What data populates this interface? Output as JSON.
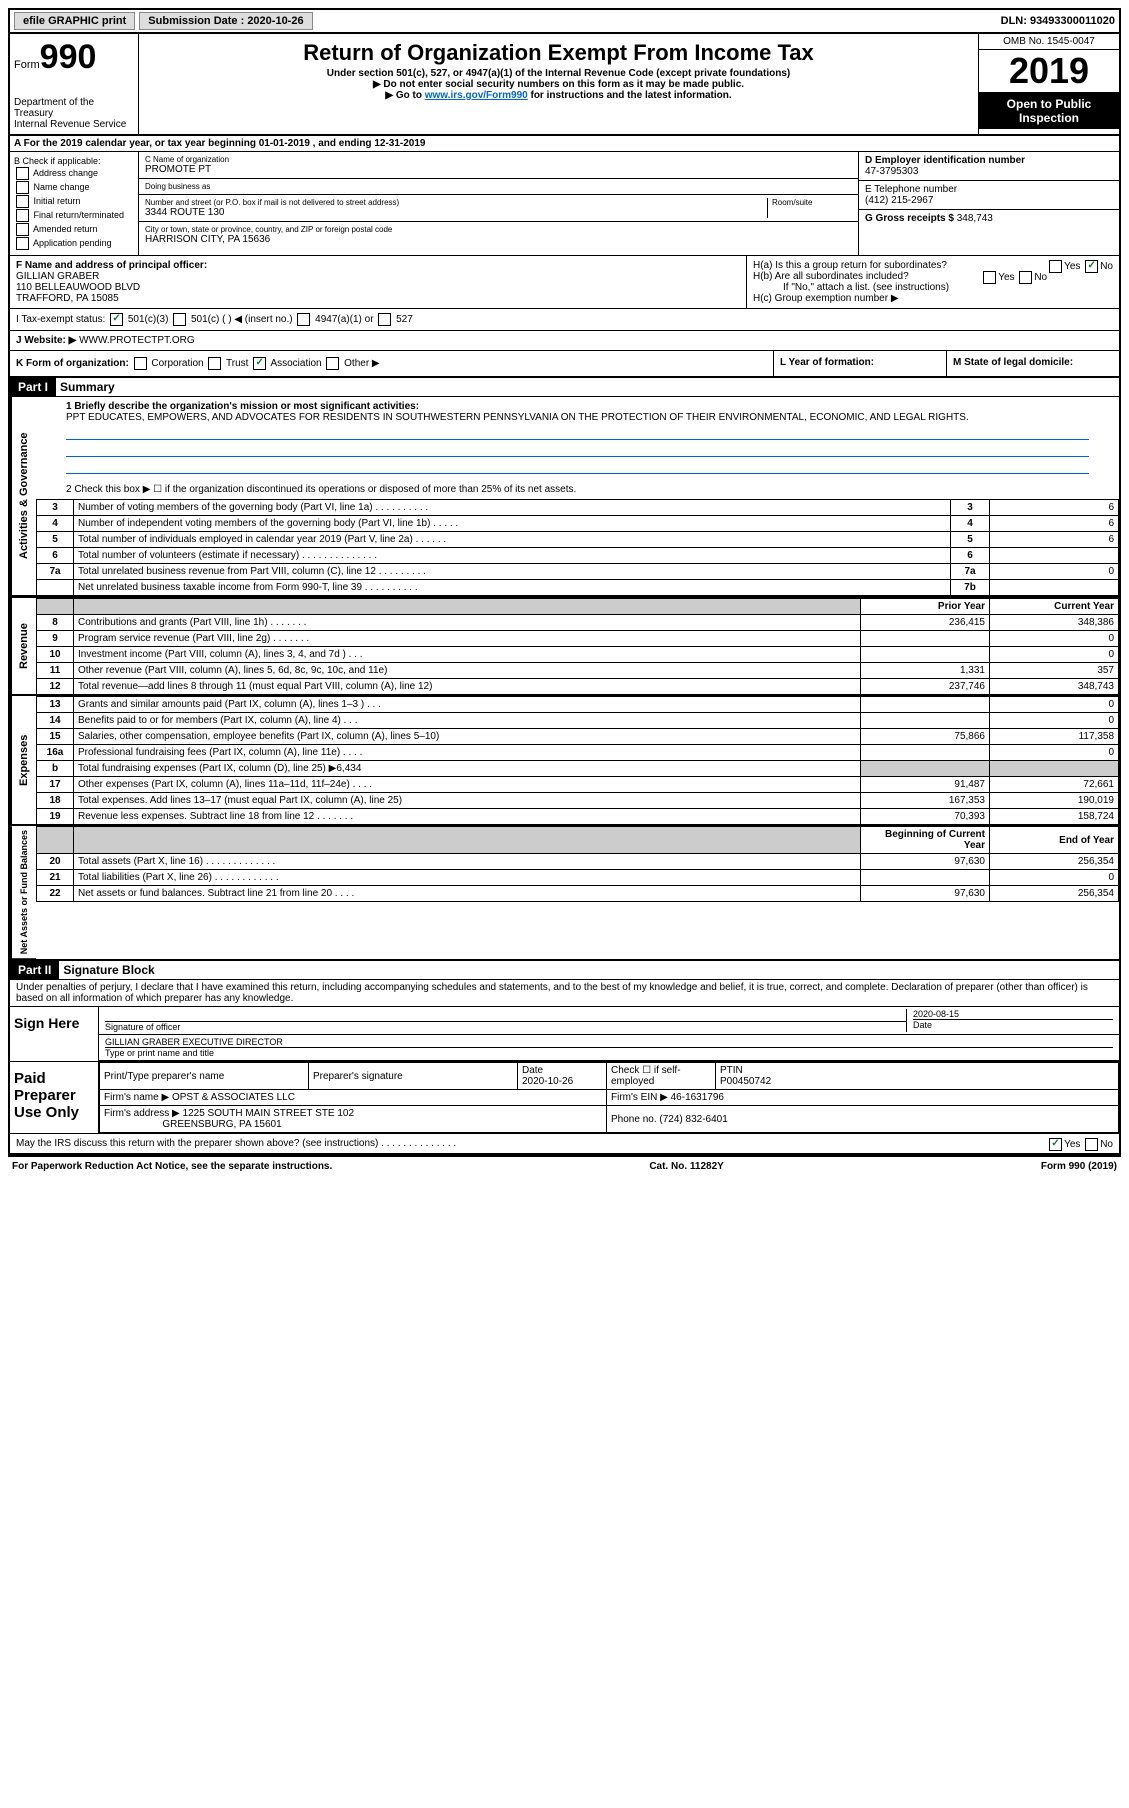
{
  "topbar": {
    "efile": "efile GRAPHIC print",
    "submission": "Submission Date : 2020-10-26",
    "dln": "DLN: 93493300011020"
  },
  "header": {
    "form": "Form",
    "formnum": "990",
    "dept": "Department of the Treasury\nInternal Revenue Service",
    "title": "Return of Organization Exempt From Income Tax",
    "sub1": "Under section 501(c), 527, or 4947(a)(1) of the Internal Revenue Code (except private foundations)",
    "sub2": "▶ Do not enter social security numbers on this form as it may be made public.",
    "sub3_pre": "▶ Go to ",
    "sub3_link": "www.irs.gov/Form990",
    "sub3_post": " for instructions and the latest information.",
    "omb": "OMB No. 1545-0047",
    "year": "2019",
    "open": "Open to Public Inspection"
  },
  "rowA": "A For the 2019 calendar year, or tax year beginning 01-01-2019   , and ending 12-31-2019",
  "colB": {
    "title": "B Check if applicable:",
    "opts": [
      "Address change",
      "Name change",
      "Initial return",
      "Final return/terminated",
      "Amended return",
      "Application pending"
    ]
  },
  "colC": {
    "name_label": "C Name of organization",
    "name": "PROMOTE PT",
    "dba_label": "Doing business as",
    "dba": "",
    "addr_label": "Number and street (or P.O. box if mail is not delivered to street address)",
    "room_label": "Room/suite",
    "addr": "3344 ROUTE 130",
    "city_label": "City or town, state or province, country, and ZIP or foreign postal code",
    "city": "HARRISON CITY, PA  15636"
  },
  "colD": {
    "ein_label": "D Employer identification number",
    "ein": "47-3795303",
    "tel_label": "E Telephone number",
    "tel": "(412) 215-2967",
    "gross_label": "G Gross receipts $",
    "gross": "348,743"
  },
  "rowF": {
    "label": "F  Name and address of principal officer:",
    "name": "GILLIAN GRABER",
    "addr1": "110 BELLEAUWOOD BLVD",
    "addr2": "TRAFFORD, PA  15085"
  },
  "rowH": {
    "a": "H(a)  Is this a group return for subordinates?",
    "b": "H(b)  Are all subordinates included?",
    "b_note": "If \"No,\" attach a list. (see instructions)",
    "c": "H(c)  Group exemption number ▶"
  },
  "rowI": {
    "label": "I    Tax-exempt status:",
    "opts": [
      "501(c)(3)",
      "501(c) (  ) ◀ (insert no.)",
      "4947(a)(1) or",
      "527"
    ]
  },
  "rowJ": {
    "label": "J   Website: ▶",
    "val": "WWW.PROTECTPT.ORG"
  },
  "rowK": {
    "label": "K Form of organization:",
    "opts": [
      "Corporation",
      "Trust",
      "Association",
      "Other ▶"
    ]
  },
  "rowL": {
    "label": "L Year of formation:"
  },
  "rowM": {
    "label": "M State of legal domicile:"
  },
  "part1": {
    "header": "Part I",
    "title": "Summary",
    "line1_label": "1  Briefly describe the organization's mission or most significant activities:",
    "line1_val": "PPT EDUCATES, EMPOWERS, AND ADVOCATES FOR RESIDENTS IN SOUTHWESTERN PENNSYLVANIA ON THE PROTECTION OF THEIR ENVIRONMENTAL, ECONOMIC, AND LEGAL RIGHTS.",
    "line2": "2    Check this box ▶ ☐  if the organization discontinued its operations or disposed of more than 25% of its net assets.",
    "lines_gov": [
      {
        "n": "3",
        "d": "Number of voting members of the governing body (Part VI, line 1a)  .  .  .  .  .  .  .  .  .  .",
        "box": "3",
        "v": "6"
      },
      {
        "n": "4",
        "d": "Number of independent voting members of the governing body (Part VI, line 1b)  .  .  .  .  .",
        "box": "4",
        "v": "6"
      },
      {
        "n": "5",
        "d": "Total number of individuals employed in calendar year 2019 (Part V, line 2a)  .  .  .  .  .  .",
        "box": "5",
        "v": "6"
      },
      {
        "n": "6",
        "d": "Total number of volunteers (estimate if necessary)  .  .  .  .  .  .  .  .  .  .  .  .  .  .",
        "box": "6",
        "v": ""
      },
      {
        "n": "7a",
        "d": "Total unrelated business revenue from Part VIII, column (C), line 12  .  .  .  .  .  .  .  .  .",
        "box": "7a",
        "v": "0"
      },
      {
        "n": "",
        "d": "Net unrelated business taxable income from Form 990-T, line 39  .  .  .  .  .  .  .  .  .  .",
        "box": "7b",
        "v": ""
      }
    ],
    "col_prior": "Prior Year",
    "col_current": "Current Year",
    "lines_rev": [
      {
        "n": "8",
        "d": "Contributions and grants (Part VIII, line 1h)  .  .  .  .  .  .  .",
        "p": "236,415",
        "c": "348,386"
      },
      {
        "n": "9",
        "d": "Program service revenue (Part VIII, line 2g)  .  .  .  .  .  .  .",
        "p": "",
        "c": "0"
      },
      {
        "n": "10",
        "d": "Investment income (Part VIII, column (A), lines 3, 4, and 7d )  .  .  .",
        "p": "",
        "c": "0"
      },
      {
        "n": "11",
        "d": "Other revenue (Part VIII, column (A), lines 5, 6d, 8c, 9c, 10c, and 11e)",
        "p": "1,331",
        "c": "357"
      },
      {
        "n": "12",
        "d": "Total revenue—add lines 8 through 11 (must equal Part VIII, column (A), line 12)",
        "p": "237,746",
        "c": "348,743"
      }
    ],
    "lines_exp": [
      {
        "n": "13",
        "d": "Grants and similar amounts paid (Part IX, column (A), lines 1–3 )  .  .  .",
        "p": "",
        "c": "0"
      },
      {
        "n": "14",
        "d": "Benefits paid to or for members (Part IX, column (A), line 4)  .  .  .",
        "p": "",
        "c": "0"
      },
      {
        "n": "15",
        "d": "Salaries, other compensation, employee benefits (Part IX, column (A), lines 5–10)",
        "p": "75,866",
        "c": "117,358"
      },
      {
        "n": "16a",
        "d": "Professional fundraising fees (Part IX, column (A), line 11e)  .  .  .  .",
        "p": "",
        "c": "0"
      },
      {
        "n": "b",
        "d": "Total fundraising expenses (Part IX, column (D), line 25) ▶6,434",
        "p": "grey",
        "c": "grey"
      },
      {
        "n": "17",
        "d": "Other expenses (Part IX, column (A), lines 11a–11d, 11f–24e)  .  .  .  .",
        "p": "91,487",
        "c": "72,661"
      },
      {
        "n": "18",
        "d": "Total expenses. Add lines 13–17 (must equal Part IX, column (A), line 25)",
        "p": "167,353",
        "c": "190,019"
      },
      {
        "n": "19",
        "d": "Revenue less expenses. Subtract line 18 from line 12  .  .  .  .  .  .  .",
        "p": "70,393",
        "c": "158,724"
      }
    ],
    "col_beg": "Beginning of Current Year",
    "col_end": "End of Year",
    "lines_net": [
      {
        "n": "20",
        "d": "Total assets (Part X, line 16)  .  .  .  .  .  .  .  .  .  .  .  .  .",
        "p": "97,630",
        "c": "256,354"
      },
      {
        "n": "21",
        "d": "Total liabilities (Part X, line 26)  .  .  .  .  .  .  .  .  .  .  .  .",
        "p": "",
        "c": "0"
      },
      {
        "n": "22",
        "d": "Net assets or fund balances. Subtract line 21 from line 20  .  .  .  .",
        "p": "97,630",
        "c": "256,354"
      }
    ],
    "side_gov": "Activities & Governance",
    "side_rev": "Revenue",
    "side_exp": "Expenses",
    "side_net": "Net Assets or Fund Balances"
  },
  "part2": {
    "header": "Part II",
    "title": "Signature Block",
    "decl": "Under penalties of perjury, I declare that I have examined this return, including accompanying schedules and statements, and to the best of my knowledge and belief, it is true, correct, and complete. Declaration of preparer (other than officer) is based on all information of which preparer has any knowledge.",
    "sign_here": "Sign Here",
    "sig_officer": "Signature of officer",
    "sig_date": "Date",
    "sig_date_val": "2020-08-15",
    "sig_name": "GILLIAN GRABER  EXECUTIVE DIRECTOR",
    "sig_name_label": "Type or print name and title",
    "paid": "Paid Preparer Use Only",
    "prep_name_label": "Print/Type preparer's name",
    "prep_sig_label": "Preparer's signature",
    "prep_date_label": "Date",
    "prep_date": "2020-10-26",
    "prep_check": "Check ☐ if self-employed",
    "ptin_label": "PTIN",
    "ptin": "P00450742",
    "firm_name_label": "Firm's name    ▶",
    "firm_name": "OPST & ASSOCIATES LLC",
    "firm_ein_label": "Firm's EIN ▶",
    "firm_ein": "46-1631796",
    "firm_addr_label": "Firm's address ▶",
    "firm_addr1": "1225 SOUTH MAIN STREET STE 102",
    "firm_addr2": "GREENSBURG, PA  15601",
    "phone_label": "Phone no.",
    "phone": "(724) 832-6401",
    "discuss": "May the IRS discuss this return with the preparer shown above? (see instructions)  .  .  .  .  .  .  .  .  .  .  .  .  .  ."
  },
  "footer": {
    "left": "For Paperwork Reduction Act Notice, see the separate instructions.",
    "mid": "Cat. No. 11282Y",
    "right": "Form 990 (2019)"
  }
}
